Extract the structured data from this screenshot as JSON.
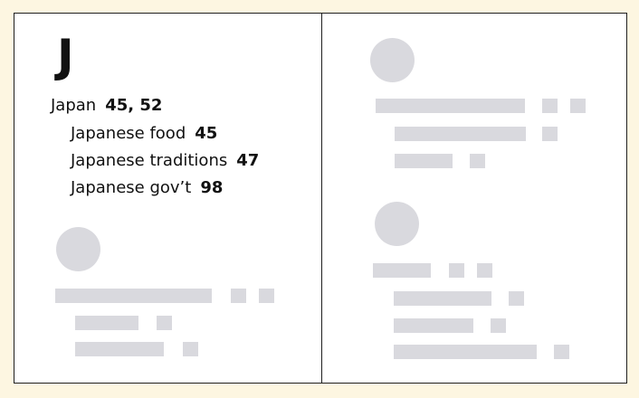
{
  "index": {
    "letter": "J",
    "entries": [
      {
        "term": "Japan",
        "pages": "45, 52"
      },
      {
        "term": "Japanese food",
        "pages": "45"
      },
      {
        "term": "Japanese traditions",
        "pages": "47"
      },
      {
        "term": "Japanese gov’t",
        "pages": "98"
      }
    ]
  },
  "colors": {
    "background": "#fdf6e1",
    "page": "#ffffff",
    "border": "#1f1f1f",
    "placeholder": "#d9d9de"
  }
}
